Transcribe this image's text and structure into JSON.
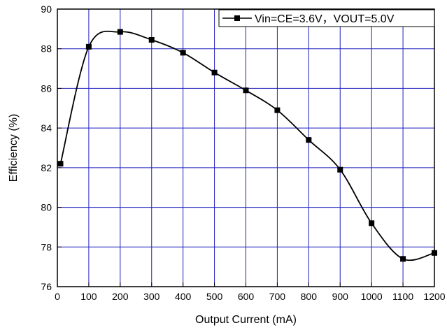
{
  "chart_data": {
    "type": "line",
    "xlabel": "Output Current (mA)",
    "ylabel": "Efficiency (%)",
    "xlim": [
      0,
      1200
    ],
    "ylim": [
      76,
      90
    ],
    "x_ticks": [
      0,
      100,
      200,
      300,
      400,
      500,
      600,
      700,
      800,
      900,
      1000,
      1100,
      1200
    ],
    "y_ticks": [
      76,
      78,
      80,
      82,
      84,
      86,
      88,
      90
    ],
    "grid": true,
    "legend_position": "top-right",
    "series": [
      {
        "name": "Vin=CE=3.6V，VOUT=5.0V",
        "marker": "square",
        "smoothed": true,
        "x": [
          10,
          100,
          200,
          300,
          400,
          500,
          600,
          700,
          800,
          900,
          1000,
          1100,
          1200
        ],
        "y": [
          82.2,
          88.1,
          88.85,
          88.45,
          87.8,
          86.8,
          85.9,
          84.9,
          83.4,
          81.9,
          79.2,
          77.4,
          77.7
        ]
      }
    ],
    "colors": {
      "line": "#000000",
      "grid": "#1f1fbf",
      "axis": "#000000"
    }
  }
}
